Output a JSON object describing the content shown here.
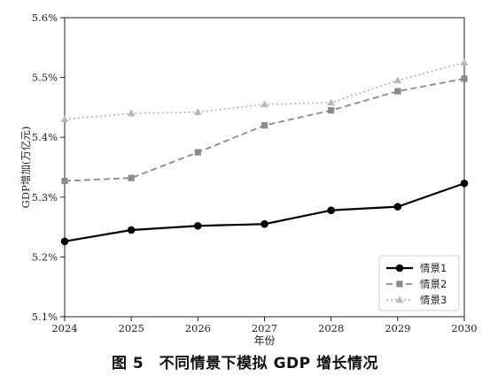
{
  "chart_data": {
    "type": "line",
    "xlabel": "年份",
    "ylabel": "GDP增加(万亿元)",
    "x": [
      2024,
      2025,
      2026,
      2027,
      2028,
      2029,
      2030
    ],
    "x_tick_labels": [
      "2024",
      "2025",
      "2026",
      "2027",
      "2028",
      "2029",
      "2030"
    ],
    "ylim": [
      5.1,
      5.6
    ],
    "y_ticks": [
      5.1,
      5.2,
      5.3,
      5.4,
      5.5,
      5.6
    ],
    "y_tick_labels": [
      "5.1%",
      "5.2%",
      "5.3%",
      "5.4%",
      "5.5%",
      "5.6%"
    ],
    "grid": false,
    "legend_position": "bottom-right",
    "series": [
      {
        "name": "情景1",
        "values": [
          5.226,
          5.245,
          5.252,
          5.255,
          5.278,
          5.284,
          5.323
        ],
        "color": "#000000",
        "line_style": "solid",
        "marker": "circle"
      },
      {
        "name": "情景2",
        "values": [
          5.327,
          5.332,
          5.375,
          5.42,
          5.445,
          5.477,
          5.498
        ],
        "color": "#8a8a8a",
        "line_style": "dashed",
        "marker": "square"
      },
      {
        "name": "情景3",
        "values": [
          5.43,
          5.44,
          5.442,
          5.455,
          5.458,
          5.495,
          5.525
        ],
        "color": "#b8b8b8",
        "line_style": "dotted",
        "marker": "triangle"
      }
    ]
  },
  "caption": "图 5　不同情景下模拟 GDP 增长情况"
}
